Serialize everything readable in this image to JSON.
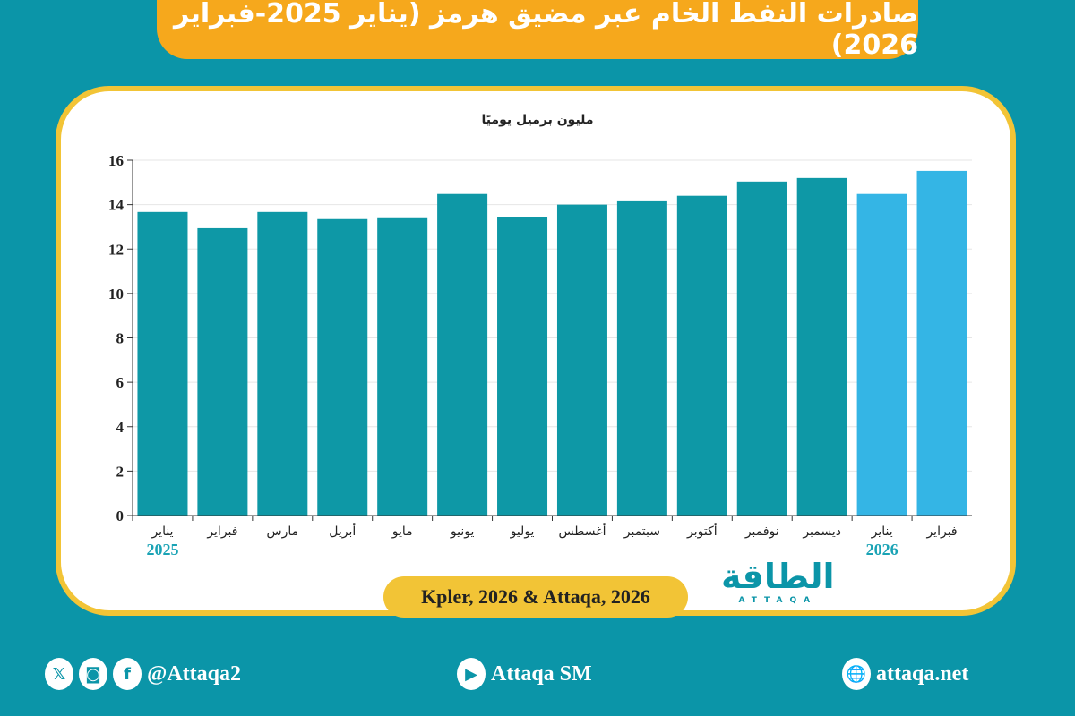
{
  "title": "صادرات النفط الخام عبر مضيق هرمز (يناير 2025-فبراير 2026)",
  "source": "Kpler, 2026 & Attaqa, 2026",
  "logo": {
    "text": "الطاقة",
    "sub": "ATTAQA"
  },
  "footer": {
    "social": "@Attaqa2",
    "youtube": "Attaqa SM",
    "website": "attaqa.net",
    "icons": [
      "x-icon",
      "instagram-icon",
      "facebook-icon",
      "youtube-icon",
      "globe-icon"
    ]
  },
  "colors": {
    "background": "#0b95a8",
    "title_bar": "#f6a81c",
    "bar_2025": "#0e98a6",
    "bar_2026": "#34b5e5",
    "frame": "#f2c436"
  },
  "chart_data": {
    "type": "bar",
    "ylabel": "مليون برميل يوميًا",
    "ylim": [
      0,
      16
    ],
    "yticks": [
      0,
      2,
      4,
      6,
      8,
      10,
      12,
      14,
      16
    ],
    "grid": true,
    "categories": [
      "يناير",
      "فبراير",
      "مارس",
      "أبريل",
      "مايو",
      "يونيو",
      "يوليو",
      "أغسطس",
      "سبتمبر",
      "أكتوبر",
      "نوفمبر",
      "ديسمبر",
      "يناير",
      "فبراير"
    ],
    "year_labels": [
      {
        "index": 0,
        "label": "2025"
      },
      {
        "index": 12,
        "label": "2026"
      }
    ],
    "values": [
      13.67,
      12.94,
      13.67,
      13.35,
      13.39,
      14.48,
      13.43,
      14.0,
      14.15,
      14.4,
      15.04,
      15.2,
      14.48,
      15.52
    ]
  }
}
